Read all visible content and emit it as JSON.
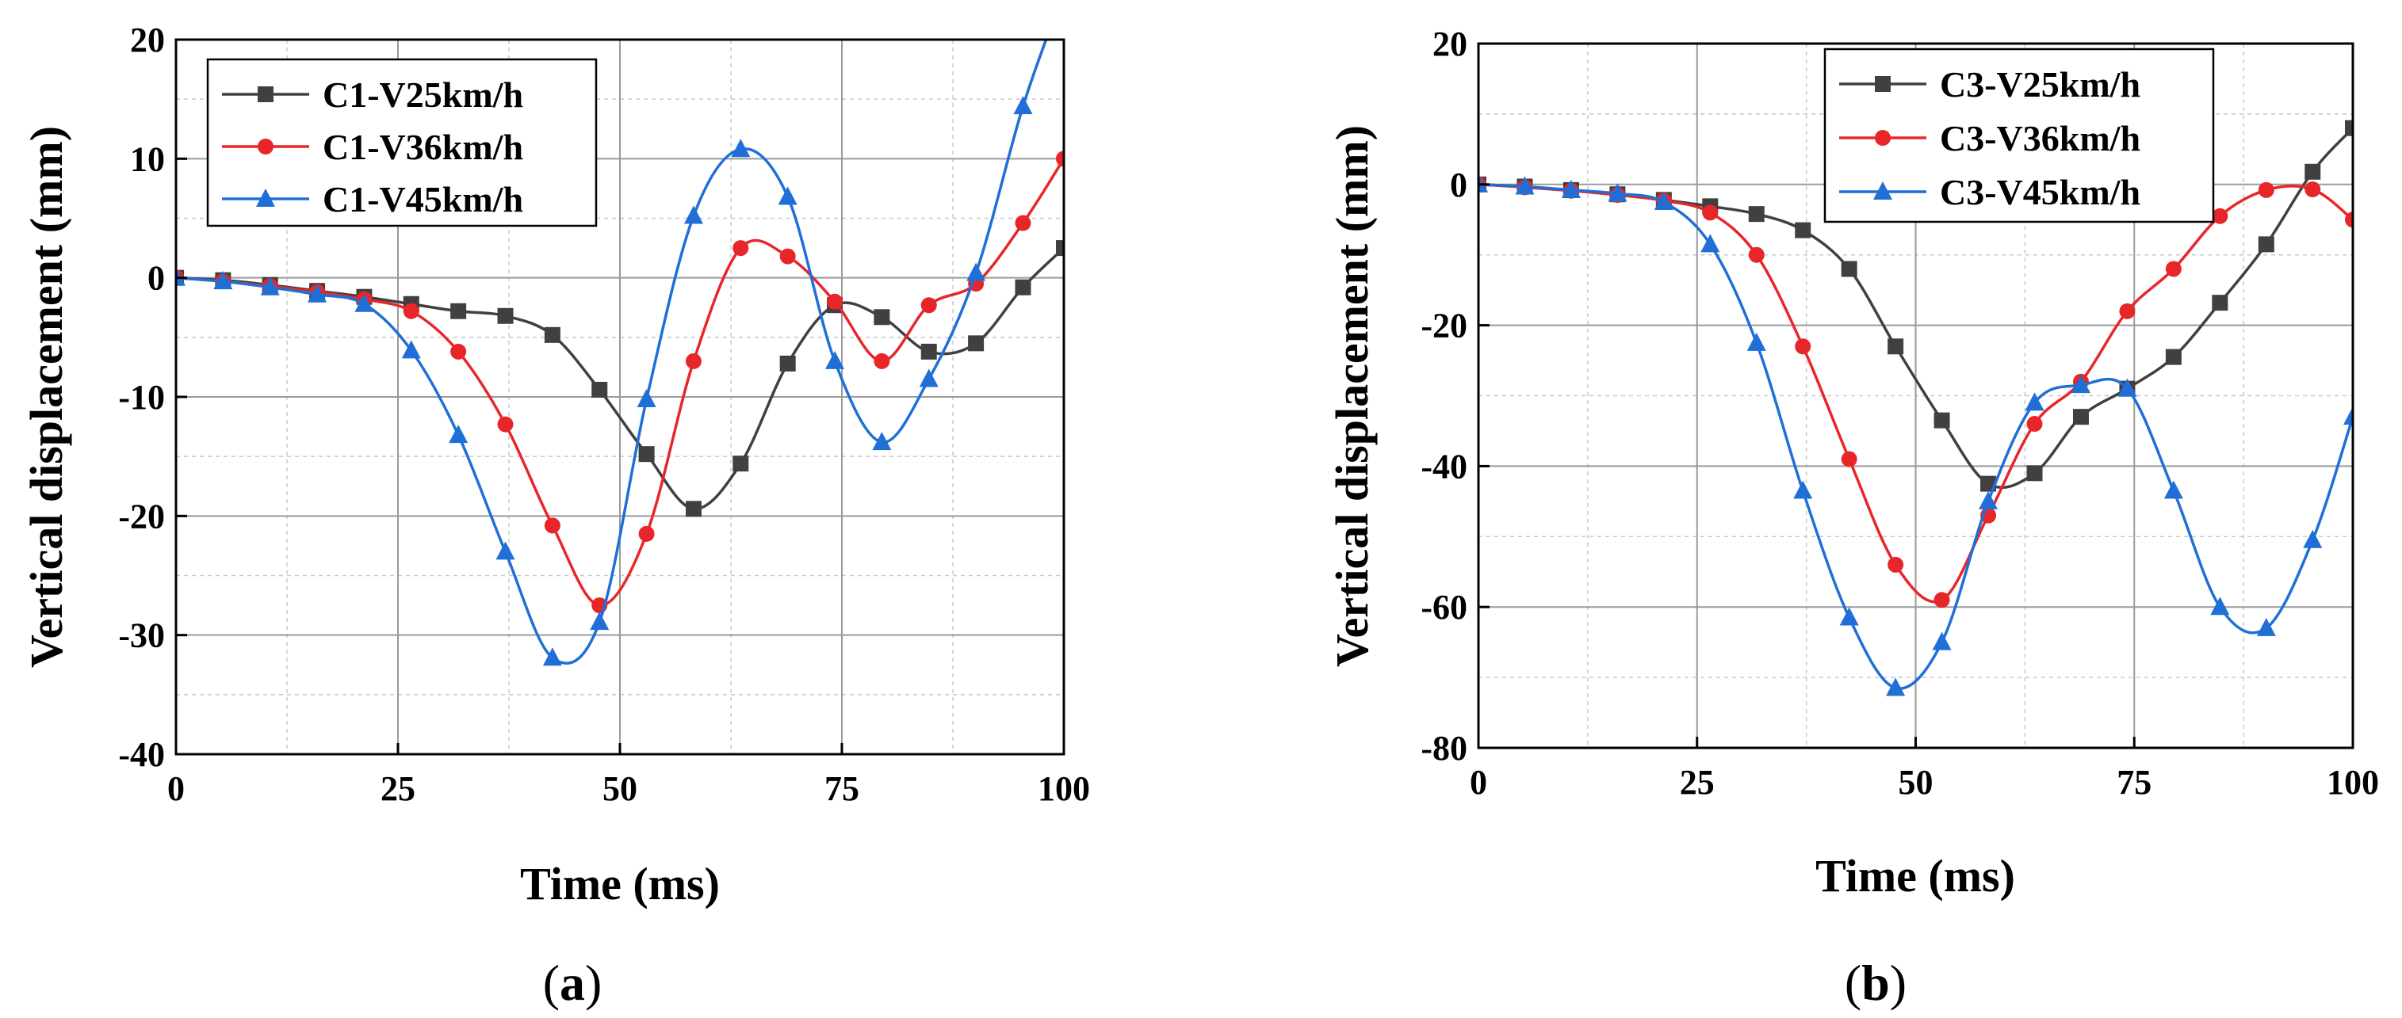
{
  "chart_data": [
    {
      "type": "line",
      "panel_label": "a",
      "xlabel": "Time (ms)",
      "ylabel": "Vertical displacement (mm)",
      "xlim": [
        0,
        100
      ],
      "ylim": [
        -40,
        20
      ],
      "xticks": [
        0,
        25,
        50,
        75,
        100
      ],
      "yticks": [
        -40,
        -30,
        -20,
        -10,
        0,
        10,
        20
      ],
      "grid": true,
      "legend_position": "top-left",
      "series": [
        {
          "name": "C1-V25km/h",
          "color": "#404040",
          "marker": "square",
          "x": [
            0,
            5.3,
            10.6,
            15.9,
            21.2,
            26.5,
            31.8,
            37.1,
            42.4,
            47.7,
            53,
            58.3,
            63.6,
            68.9,
            74.2,
            79.5,
            84.8,
            90.1,
            95.4,
            100
          ],
          "y": [
            0,
            -0.2,
            -0.6,
            -1.1,
            -1.6,
            -2.2,
            -2.8,
            -3.2,
            -4.8,
            -9.4,
            -14.8,
            -19.4,
            -15.6,
            -7.2,
            -2.3,
            -3.3,
            -6.2,
            -5.5,
            -0.8,
            2.5
          ]
        },
        {
          "name": "C1-V36km/h",
          "color": "#e8262a",
          "marker": "circle",
          "x": [
            0,
            5.3,
            10.6,
            15.9,
            21.2,
            26.5,
            31.8,
            37.1,
            42.4,
            47.7,
            53,
            58.3,
            63.6,
            68.9,
            74.2,
            79.5,
            84.8,
            90.1,
            95.4,
            100
          ],
          "y": [
            0,
            -0.3,
            -0.7,
            -1.2,
            -1.8,
            -2.8,
            -6.2,
            -12.3,
            -20.8,
            -27.5,
            -21.5,
            -7,
            2.5,
            1.8,
            -2,
            -7,
            -2.3,
            -0.5,
            4.6,
            10
          ]
        },
        {
          "name": "C1-V45km/h",
          "color": "#1f6fd6",
          "marker": "triangle",
          "x": [
            0,
            5.3,
            10.6,
            15.9,
            21.2,
            26.5,
            31.8,
            37.1,
            42.4,
            47.7,
            53,
            58.3,
            63.6,
            68.9,
            74.2,
            79.5,
            84.8,
            90.1,
            95.4,
            100
          ],
          "y": [
            0,
            -0.3,
            -0.8,
            -1.4,
            -2.2,
            -6.1,
            -13.2,
            -23,
            -31.9,
            -28.9,
            -10.2,
            5.2,
            10.8,
            6.8,
            -7,
            -13.8,
            -8.5,
            0.4,
            14.4,
            24
          ]
        }
      ]
    },
    {
      "type": "line",
      "panel_label": "b",
      "xlabel": "Time (ms)",
      "ylabel": "Vertical displacement (mm)",
      "xlim": [
        0,
        100
      ],
      "ylim": [
        -80,
        20
      ],
      "xticks": [
        0,
        25,
        50,
        75,
        100
      ],
      "yticks": [
        -80,
        -60,
        -40,
        -20,
        0,
        20
      ],
      "grid": true,
      "legend_position": "top-right",
      "series": [
        {
          "name": "C3-V25km/h",
          "color": "#404040",
          "marker": "square",
          "x": [
            0,
            5.3,
            10.6,
            15.9,
            21.2,
            26.5,
            31.8,
            37.1,
            42.4,
            47.7,
            53,
            58.3,
            63.6,
            68.9,
            74.2,
            79.5,
            84.8,
            90.1,
            95.4,
            100
          ],
          "y": [
            0,
            -0.3,
            -0.8,
            -1.4,
            -2.2,
            -3.1,
            -4.2,
            -6.5,
            -12,
            -23,
            -33.5,
            -42.5,
            -41,
            -33,
            -29,
            -24.5,
            -16.8,
            -8.5,
            1.8,
            8
          ]
        },
        {
          "name": "C3-V36km/h",
          "color": "#e8262a",
          "marker": "circle",
          "x": [
            0,
            5.3,
            10.6,
            15.9,
            21.2,
            26.5,
            31.8,
            37.1,
            42.4,
            47.7,
            53,
            58.3,
            63.6,
            68.9,
            74.2,
            79.5,
            84.8,
            90.1,
            95.4,
            100
          ],
          "y": [
            0,
            -0.4,
            -0.9,
            -1.5,
            -2.3,
            -4,
            -10,
            -23,
            -39,
            -54,
            -59,
            -47,
            -34,
            -28,
            -18,
            -12,
            -4.5,
            -0.8,
            -0.7,
            -5
          ]
        },
        {
          "name": "C3-V45km/h",
          "color": "#1f6fd6",
          "marker": "triangle",
          "x": [
            0,
            5.3,
            10.6,
            15.9,
            21.2,
            26.5,
            31.8,
            37.1,
            42.4,
            47.7,
            53,
            58.3,
            63.6,
            68.9,
            74.2,
            79.5,
            84.8,
            90.1,
            95.4,
            100
          ],
          "y": [
            0,
            -0.3,
            -0.8,
            -1.3,
            -2.5,
            -8.5,
            -22.5,
            -43.5,
            -61.5,
            -71.5,
            -65,
            -45,
            -31,
            -28.5,
            -29,
            -43.5,
            -60,
            -63,
            -50.5,
            -33
          ]
        }
      ]
    }
  ]
}
